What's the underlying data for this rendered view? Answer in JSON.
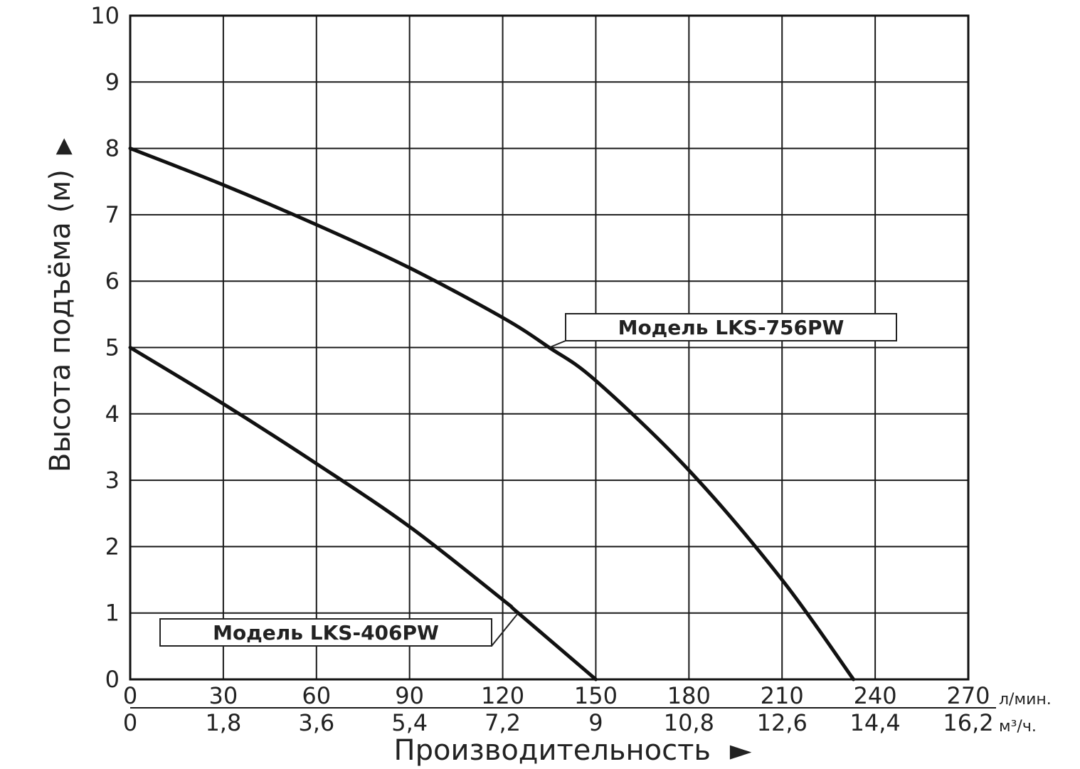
{
  "chart_data": {
    "type": "line",
    "ylabel": "Высота подъёма (м)",
    "ylabel_arrow": "▶",
    "xlabel": "Производительность",
    "xlabel_arrow": "►",
    "ylim": [
      0,
      10
    ],
    "xlim": [
      0,
      270
    ],
    "y_ticks": [
      "0",
      "1",
      "2",
      "3",
      "4",
      "5",
      "6",
      "7",
      "8",
      "9",
      "10"
    ],
    "x_ticks_primary": [
      "0",
      "30",
      "60",
      "90",
      "120",
      "150",
      "180",
      "210",
      "240",
      "270"
    ],
    "x_ticks_primary_unit": "л/мин.",
    "x_ticks_secondary": [
      "0",
      "1,8",
      "3,6",
      "5,4",
      "7,2",
      "9",
      "10,8",
      "12,6",
      "14,4",
      "16,2"
    ],
    "x_ticks_secondary_unit": "м³/ч.",
    "grid": true,
    "series": [
      {
        "name": "Модель LKS-756PW",
        "x": [
          0,
          30,
          60,
          90,
          120,
          135,
          150,
          180,
          210,
          233
        ],
        "y": [
          8,
          7.45,
          6.85,
          6.2,
          5.45,
          5.0,
          4.5,
          3.15,
          1.5,
          0
        ]
      },
      {
        "name": "Модель LKS-406PW",
        "x": [
          0,
          30,
          60,
          90,
          120,
          125,
          150
        ],
        "y": [
          5,
          4.15,
          3.25,
          2.3,
          1.2,
          1.0,
          0
        ]
      }
    ],
    "annotations": [
      {
        "text": "Модель LKS-756PW",
        "x": 135,
        "y": 5.0
      },
      {
        "text": "Модель LKS-406PW",
        "x": 125,
        "y": 1.0
      }
    ]
  }
}
